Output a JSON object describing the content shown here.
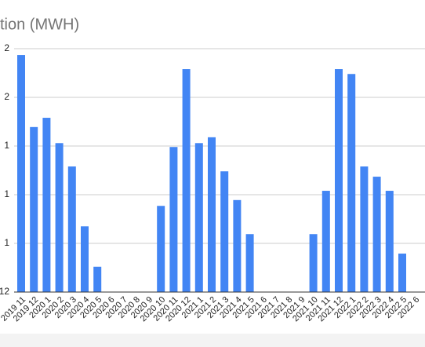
{
  "chart_data": {
    "type": "bar",
    "title": "tion (MWH)",
    "color": "#4285f4",
    "grid": true,
    "categories": [
      "2019 11",
      "2019 12",
      "2020 1",
      "2020 2",
      "2020 3",
      "2020 4",
      "2020 5",
      "2020 6",
      "2020 7",
      "2020 8",
      "2020 9",
      "2020 10",
      "2020 11",
      "2020 12",
      "2021 1",
      "2021 2",
      "2021 3",
      "2021 4",
      "2021 5",
      "2021 6",
      "2021 7",
      "2021 8",
      "2021 9",
      "2021 10",
      "2021 11",
      "2021 12",
      "2022 1",
      "2022 2",
      "2022 3",
      "2022 4",
      "2022 5",
      "2022 6"
    ],
    "values": [
      4.87,
      3.39,
      3.58,
      3.06,
      2.58,
      1.35,
      0.52,
      0,
      0,
      0,
      0,
      1.77,
      2.98,
      4.58,
      3.06,
      3.18,
      2.48,
      1.89,
      1.19,
      0,
      0,
      0,
      0,
      1.19,
      2.08,
      4.58,
      4.48,
      2.58,
      2.37,
      2.08,
      0.79,
      0
    ],
    "ylim": [
      0,
      5
    ],
    "yticks": [
      {
        "value": 0,
        "label": "12"
      },
      {
        "value": 1,
        "label": "1"
      },
      {
        "value": 2,
        "label": "1"
      },
      {
        "value": 3,
        "label": "1"
      },
      {
        "value": 4,
        "label": "2"
      },
      {
        "value": 5,
        "label": "2"
      }
    ]
  }
}
